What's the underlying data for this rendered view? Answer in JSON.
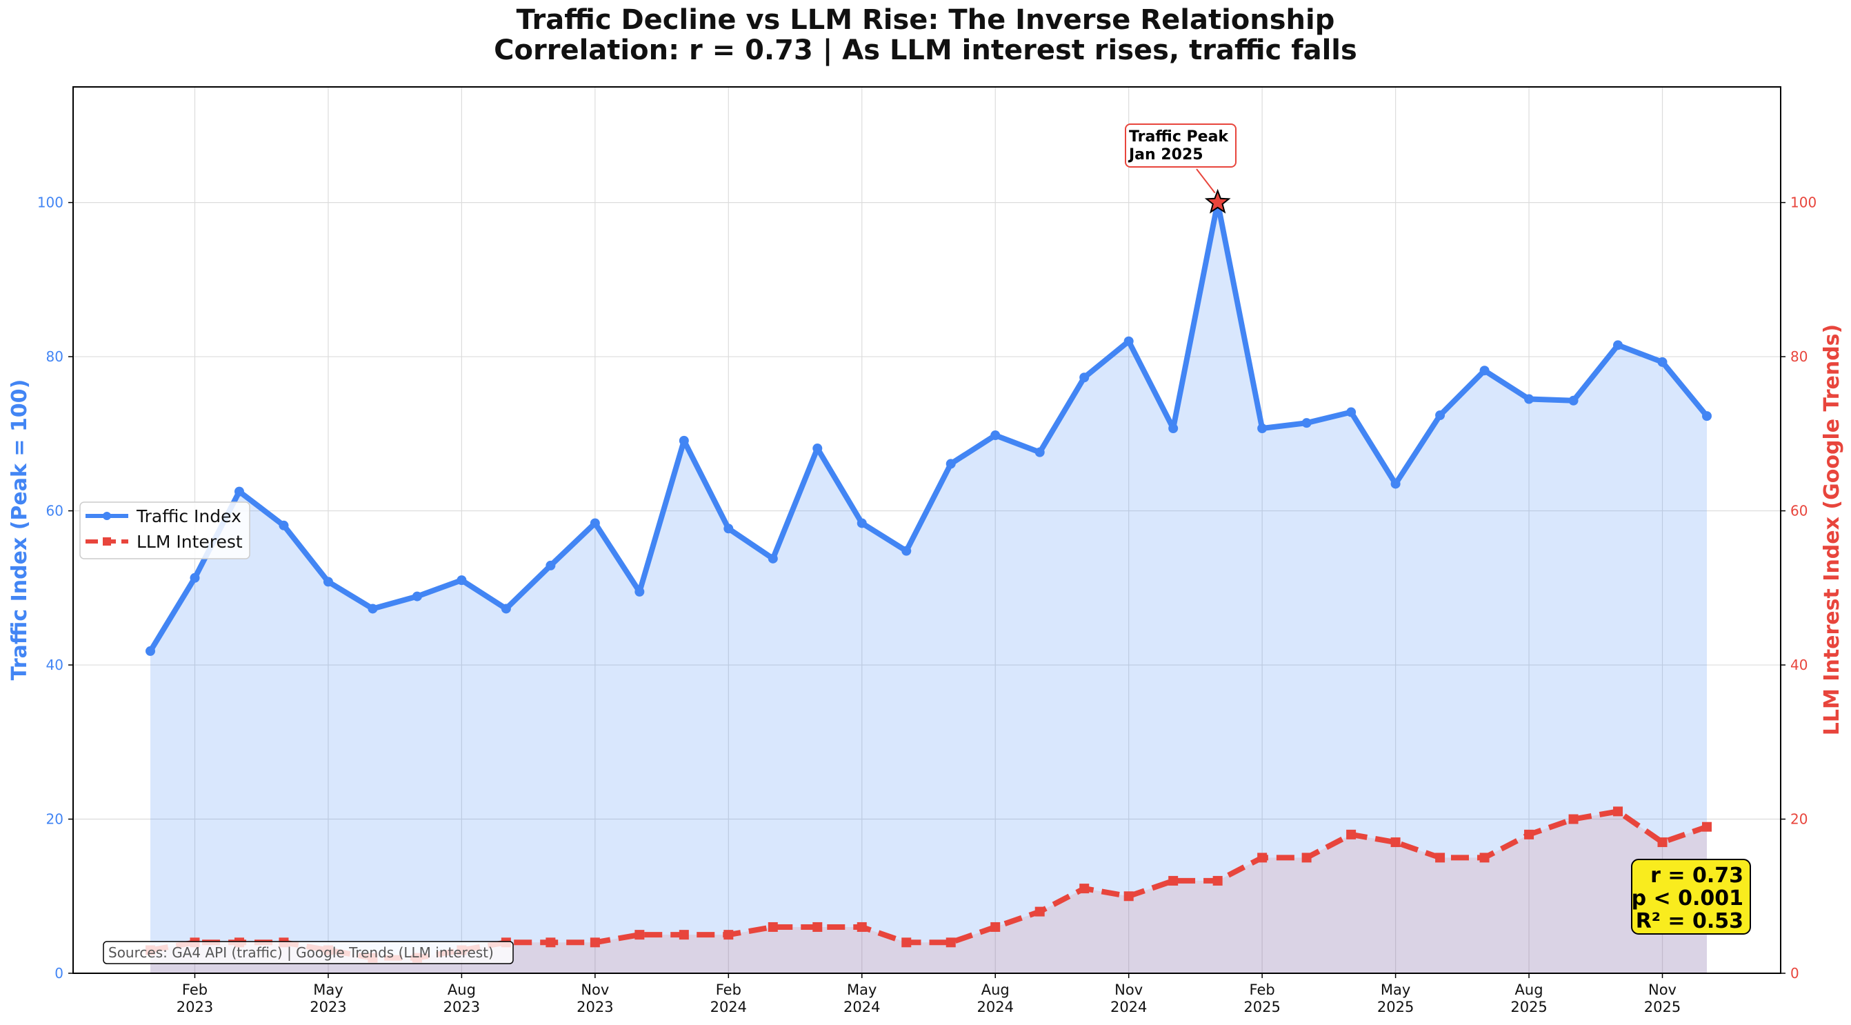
{
  "chart_data": {
    "type": "line",
    "title_line1": "Traffic Decline vs LLM Rise: The Inverse Relationship",
    "title_line2": "Correlation: r = 0.73 | As LLM interest rises, traffic falls",
    "ylabel_left": "Traffic Index (Peak = 100)",
    "ylabel_right": "LLM Interest Index (Google Trends)",
    "ylim": [
      0,
      115
    ],
    "yticks": [
      0,
      20,
      40,
      60,
      80,
      100
    ],
    "x": [
      "2023-01",
      "2023-02",
      "2023-03",
      "2023-04",
      "2023-05",
      "2023-06",
      "2023-07",
      "2023-08",
      "2023-09",
      "2023-10",
      "2023-11",
      "2023-12",
      "2024-01",
      "2024-02",
      "2024-03",
      "2024-04",
      "2024-05",
      "2024-06",
      "2024-07",
      "2024-08",
      "2024-09",
      "2024-10",
      "2024-11",
      "2024-12",
      "2025-01",
      "2025-02",
      "2025-03",
      "2025-04",
      "2025-05",
      "2025-06",
      "2025-07",
      "2025-08",
      "2025-09",
      "2025-10",
      "2025-11",
      "2025-12"
    ],
    "x_ticks": [
      {
        "month": "Feb",
        "year": "2023",
        "index": 1
      },
      {
        "month": "May",
        "year": "2023",
        "index": 4
      },
      {
        "month": "Aug",
        "year": "2023",
        "index": 7
      },
      {
        "month": "Nov",
        "year": "2023",
        "index": 10
      },
      {
        "month": "Feb",
        "year": "2024",
        "index": 13
      },
      {
        "month": "May",
        "year": "2024",
        "index": 16
      },
      {
        "month": "Aug",
        "year": "2024",
        "index": 19
      },
      {
        "month": "Nov",
        "year": "2024",
        "index": 22
      },
      {
        "month": "Feb",
        "year": "2025",
        "index": 25
      },
      {
        "month": "May",
        "year": "2025",
        "index": 28
      },
      {
        "month": "Aug",
        "year": "2025",
        "index": 31
      },
      {
        "month": "Nov",
        "year": "2025",
        "index": 34
      }
    ],
    "series": [
      {
        "name": "Traffic Index",
        "axis": "left",
        "color": "#4285f4",
        "style": "solid-circle",
        "values": [
          41.8,
          51.3,
          62.5,
          58.1,
          50.8,
          47.3,
          48.9,
          51.0,
          47.3,
          52.9,
          58.4,
          49.5,
          69.1,
          57.7,
          53.8,
          68.1,
          58.4,
          54.8,
          66.1,
          69.8,
          67.6,
          77.3,
          82.0,
          70.7,
          100.0,
          70.7,
          71.4,
          72.8,
          63.5,
          72.4,
          78.2,
          74.5,
          74.3,
          81.5,
          79.3,
          72.3
        ]
      },
      {
        "name": "LLM Interest",
        "axis": "right",
        "color": "#e8453c",
        "style": "dashed-square",
        "values": [
          3,
          4,
          4,
          4,
          3,
          2,
          2,
          3,
          4,
          4,
          4,
          5,
          5,
          5,
          6,
          6,
          6,
          4,
          4,
          6,
          8,
          11,
          10,
          12,
          12,
          15,
          15,
          18,
          17,
          15,
          15,
          18,
          20,
          21,
          17,
          19
        ]
      }
    ],
    "legend": {
      "location": "center-left",
      "entries": [
        "Traffic Index",
        "LLM Interest"
      ]
    },
    "annotation": {
      "text_line1": "Traffic Peak",
      "text_line2": "Jan 2025",
      "index": 24,
      "value": 100
    },
    "stats_box": {
      "line1": "r = 0.73",
      "line2": "p < 0.001",
      "line3": "R² = 0.53",
      "color": "#f9ec1e"
    },
    "source_note": "Sources: GA4 API (traffic) | Google Trends (LLM interest)"
  }
}
